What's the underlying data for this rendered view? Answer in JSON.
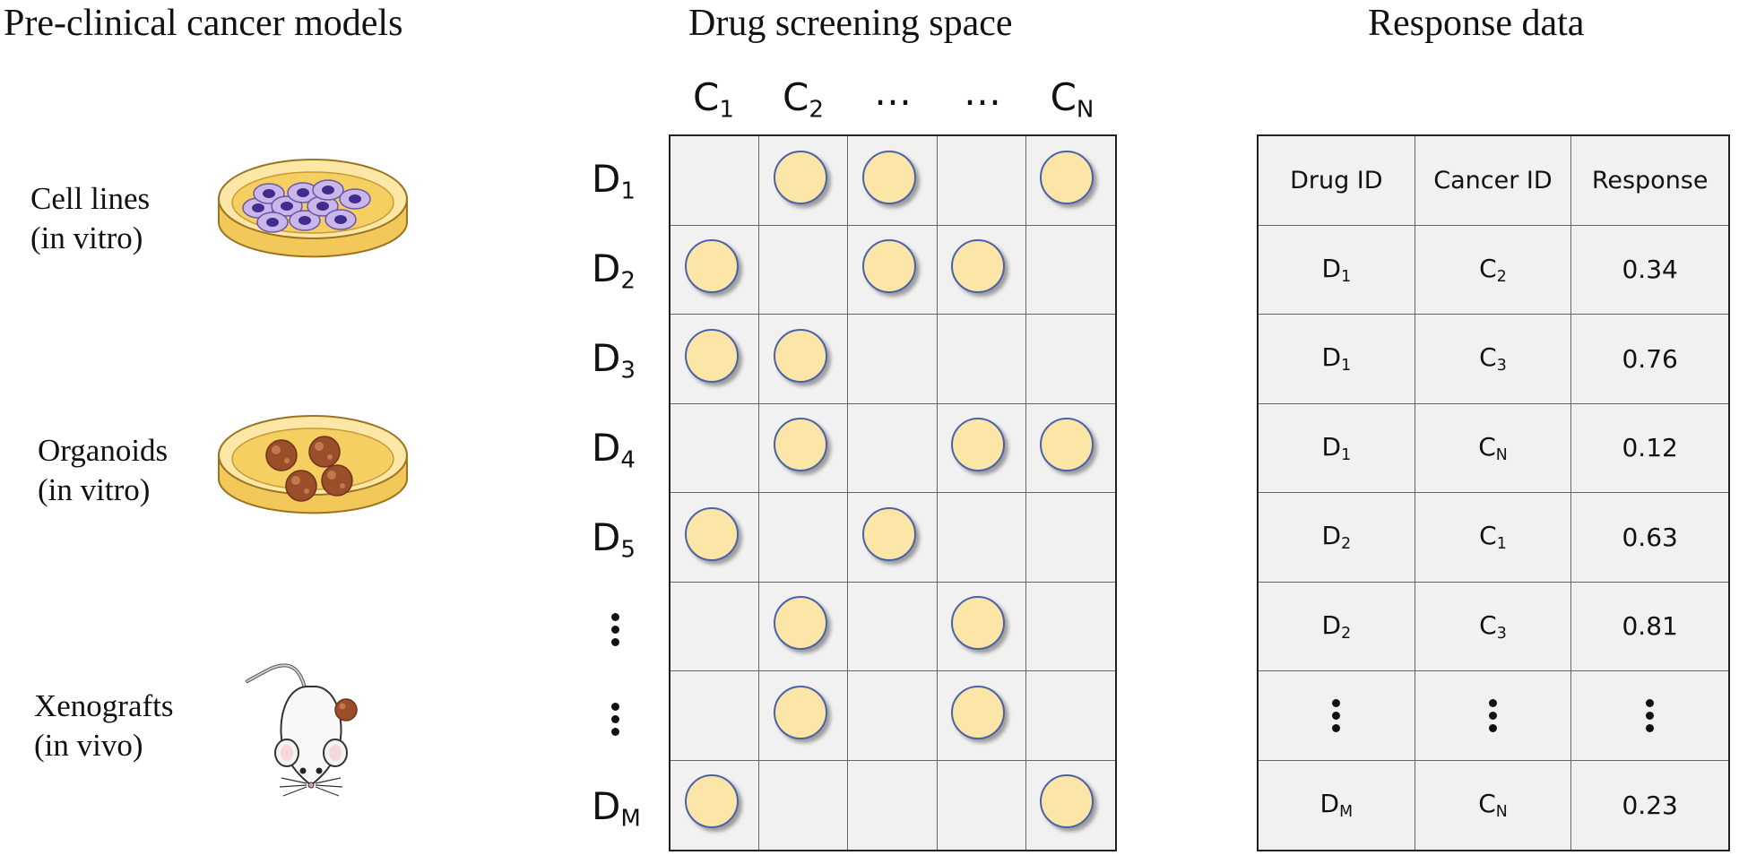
{
  "titles": {
    "models": "Pre-clinical cancer models",
    "screening": "Drug screening space",
    "response": "Response data"
  },
  "models": [
    {
      "line1": "Cell lines",
      "line2": "(in vitro)",
      "icon": "petri-dish-cells-icon"
    },
    {
      "line1": "Organoids",
      "line2": "(in vitro)",
      "icon": "petri-dish-organoids-icon"
    },
    {
      "line1": "Xenografts",
      "line2": "(in vivo)",
      "icon": "mouse-xenograft-icon"
    }
  ],
  "screening": {
    "columns": [
      {
        "base": "C",
        "sub": "1"
      },
      {
        "base": "C",
        "sub": "2"
      },
      {
        "text": "…"
      },
      {
        "text": "…"
      },
      {
        "base": "C",
        "sub": "N"
      }
    ],
    "rows": [
      {
        "base": "D",
        "sub": "1",
        "tested": [
          2,
          3,
          5
        ]
      },
      {
        "base": "D",
        "sub": "2",
        "tested": [
          1,
          3,
          4
        ]
      },
      {
        "base": "D",
        "sub": "3",
        "tested": [
          1,
          2
        ]
      },
      {
        "base": "D",
        "sub": "4",
        "tested": [
          2,
          4,
          5
        ]
      },
      {
        "base": "D",
        "sub": "5",
        "tested": [
          1,
          3
        ]
      },
      {
        "ellipsis": true,
        "tested": [
          2,
          4
        ]
      },
      {
        "ellipsis": true,
        "tested": [
          2,
          4
        ]
      },
      {
        "base": "D",
        "sub": "M",
        "tested": [
          1,
          5
        ]
      }
    ],
    "colors": {
      "dot_fill": "#fbe6a8",
      "dot_stroke": "#4a63a8",
      "grid_bg": "#f1f1f1"
    }
  },
  "response_table": {
    "headers": [
      "Drug ID",
      "Cancer ID",
      "Response"
    ],
    "rows": [
      {
        "drug": {
          "base": "D",
          "sub": "1"
        },
        "cancer": {
          "base": "C",
          "sub": "2"
        },
        "response": "0.34"
      },
      {
        "drug": {
          "base": "D",
          "sub": "1"
        },
        "cancer": {
          "base": "C",
          "sub": "3"
        },
        "response": "0.76"
      },
      {
        "drug": {
          "base": "D",
          "sub": "1"
        },
        "cancer": {
          "base": "C",
          "sub": "N"
        },
        "response": "0.12"
      },
      {
        "drug": {
          "base": "D",
          "sub": "2"
        },
        "cancer": {
          "base": "C",
          "sub": "1"
        },
        "response": "0.63"
      },
      {
        "drug": {
          "base": "D",
          "sub": "2"
        },
        "cancer": {
          "base": "C",
          "sub": "3"
        },
        "response": "0.81"
      },
      {
        "ellipsis": true
      },
      {
        "drug": {
          "base": "D",
          "sub": "M"
        },
        "cancer": {
          "base": "C",
          "sub": "N"
        },
        "response": "0.23"
      }
    ]
  }
}
